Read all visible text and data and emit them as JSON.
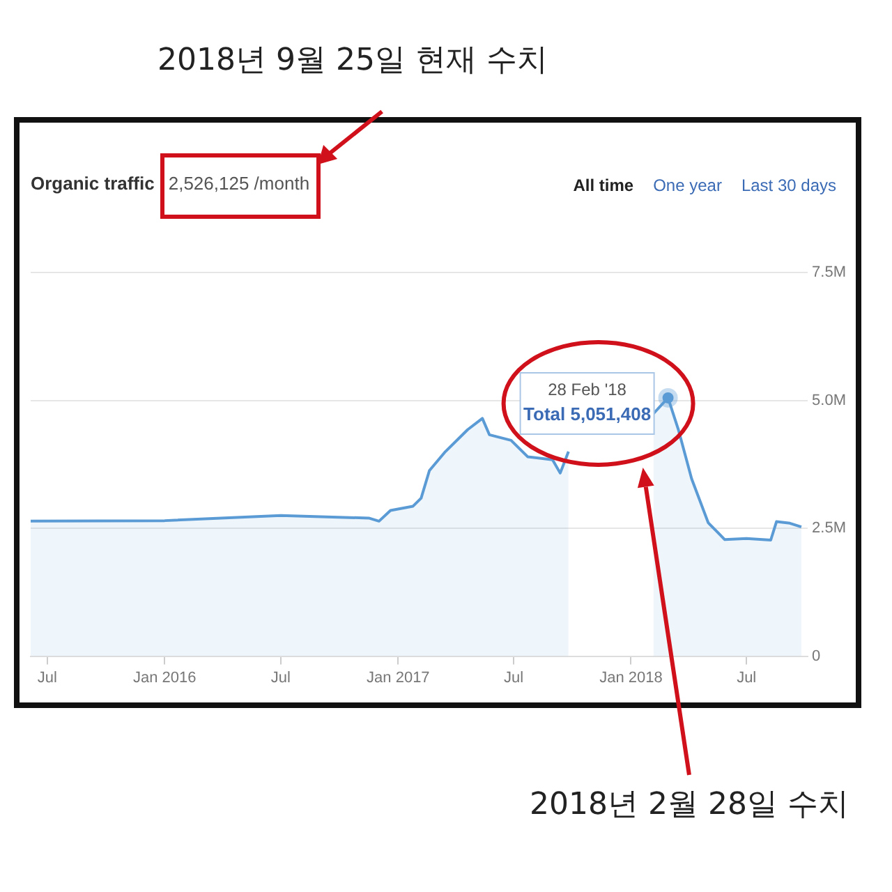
{
  "chart_data": {
    "type": "area",
    "title": "Organic traffic",
    "subtitle": "2,526,125 /month",
    "annotations": [
      "All time",
      "One year",
      "Last 30 days",
      "2018년 9월 25일 현재 수치",
      "2018년 2월 28일 수치",
      {
        "text": "28 Feb '18\nTotal 5,051,408",
        "x": "2018-02-28",
        "y": 5051408
      }
    ],
    "x": [
      "2015-06-05",
      "2016-01-01",
      "2016-07-01",
      "2016-11-16",
      "2016-12-02",
      "2016-12-20",
      "2017-01-24",
      "2017-02-06",
      "2017-02-19",
      "2017-03-16",
      "2017-04-20",
      "2017-05-13",
      "2017-05-24",
      "2017-06-27",
      "2017-07-23",
      "2017-08-31",
      "2017-09-12",
      "2017-09-25",
      "2017-11-15",
      "2018-02-05",
      "2018-02-28",
      "2018-03-16",
      "2018-04-06",
      "2018-05-02",
      "2018-05-28",
      "2018-07-01",
      "2018-08-08",
      "2018-08-17",
      "2018-09-07",
      "2018-09-25"
    ],
    "series": [
      {
        "color": "#5b9bd5",
        "values": [
          2640000,
          2650000,
          2750000,
          2700000,
          2640000,
          2850000,
          2930000,
          3090000,
          3630000,
          4000000,
          4430000,
          4650000,
          4330000,
          4220000,
          3900000,
          3840000,
          3580000,
          4000000,
          null,
          4740000,
          5051408,
          4440000,
          3470000,
          2610000,
          2280000,
          2300000,
          2270000,
          2630000,
          2600000,
          2526125
        ]
      }
    ],
    "xlim": [
      "2015-06-05",
      "2018-10-05"
    ],
    "xticks": [
      {
        "value": "2015-07",
        "label": "Jul"
      },
      {
        "value": "2016-01",
        "label": "Jan 2016"
      },
      {
        "value": "2016-07",
        "label": "Jul"
      },
      {
        "value": "2017-01",
        "label": "Jan 2017"
      },
      {
        "value": "2017-07",
        "label": "Jul"
      },
      {
        "value": "2018-01",
        "label": "Jan 2018"
      },
      {
        "value": "2018-07",
        "label": "Jul"
      }
    ],
    "ylim": [
      0,
      7500000
    ],
    "yticks": [
      0,
      {
        "value": 2500000,
        "label": "2.5M"
      },
      {
        "value": 5000000,
        "label": "5.0M"
      },
      {
        "value": 7500000,
        "label": "7.5M"
      }
    ],
    "grid": "y",
    "legend": false,
    "marker": "none"
  }
}
